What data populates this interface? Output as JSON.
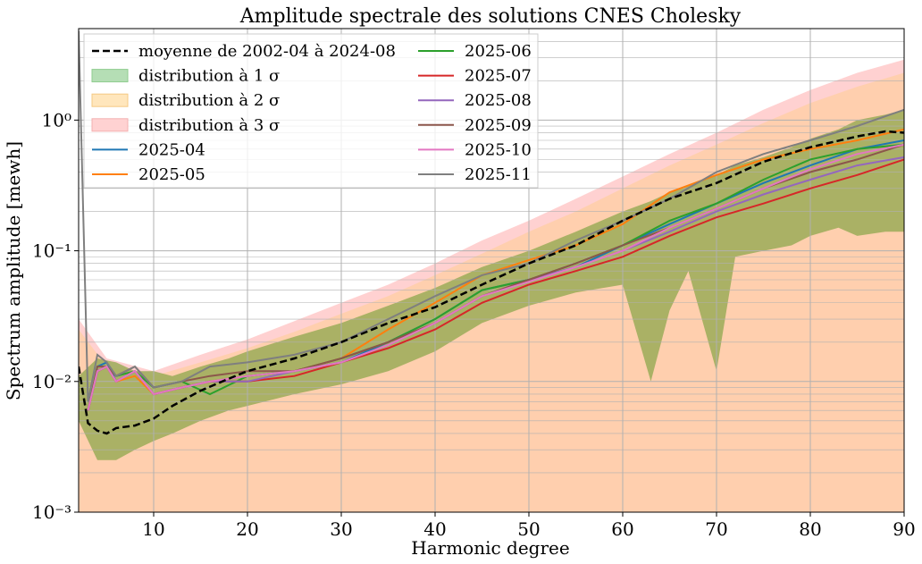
{
  "chart_data": {
    "type": "line",
    "title": "Amplitude spectrale des solutions CNES Cholesky",
    "xlabel": "Harmonic degree",
    "ylabel": "Spectrum amplitude [mewh]",
    "xlim": [
      2,
      90
    ],
    "ylim_log10": [
      -3,
      0.7
    ],
    "x_ticks": [
      {
        "value": 10,
        "label": "10"
      },
      {
        "value": 20,
        "label": "20"
      },
      {
        "value": 30,
        "label": "30"
      },
      {
        "value": 40,
        "label": "40"
      },
      {
        "value": 50,
        "label": "50"
      },
      {
        "value": 60,
        "label": "60"
      },
      {
        "value": 70,
        "label": "70"
      },
      {
        "value": 80,
        "label": "80"
      },
      {
        "value": 90,
        "label": "90"
      }
    ],
    "y_ticks": [
      {
        "exp": -3,
        "label": "10⁻³"
      },
      {
        "exp": -2,
        "label": "10⁻²"
      },
      {
        "exp": -1,
        "label": "10⁻¹"
      },
      {
        "exp": 0,
        "label": "10⁰"
      }
    ],
    "grid": true,
    "legend_position": "top-left",
    "mean_series": {
      "name": "moyenne de 2002-04 à 2024-08",
      "color": "#000000",
      "style": "dashed",
      "x": [
        2,
        3,
        4,
        5,
        6,
        8,
        10,
        12,
        15,
        18,
        20,
        25,
        30,
        35,
        40,
        45,
        50,
        55,
        60,
        65,
        70,
        75,
        80,
        85,
        88,
        90
      ],
      "y": [
        0.013,
        0.0048,
        0.0042,
        0.004,
        0.0044,
        0.0046,
        0.0052,
        0.0065,
        0.0085,
        0.0105,
        0.012,
        0.015,
        0.02,
        0.028,
        0.037,
        0.055,
        0.08,
        0.11,
        0.17,
        0.25,
        0.33,
        0.48,
        0.62,
        0.75,
        0.82,
        0.8
      ]
    },
    "bands": [
      {
        "name": "distribution à 3 σ",
        "color": "#ffc9c9",
        "x": [
          2,
          5,
          10,
          15,
          20,
          25,
          30,
          35,
          40,
          45,
          50,
          55,
          60,
          65,
          70,
          75,
          80,
          85,
          90
        ],
        "low": [
          0.001,
          0.001,
          0.001,
          0.001,
          0.001,
          0.001,
          0.001,
          0.001,
          0.001,
          0.001,
          0.001,
          0.001,
          0.001,
          0.001,
          0.001,
          0.001,
          0.001,
          0.001,
          0.001
        ],
        "high": [
          0.03,
          0.015,
          0.012,
          0.016,
          0.021,
          0.029,
          0.04,
          0.055,
          0.08,
          0.12,
          0.17,
          0.25,
          0.37,
          0.55,
          0.8,
          1.2,
          1.7,
          2.3,
          2.9
        ]
      },
      {
        "name": "distribution à 2 σ",
        "color": "#ffcfa8",
        "x": [
          2,
          5,
          10,
          15,
          20,
          25,
          30,
          35,
          40,
          45,
          50,
          55,
          60,
          65,
          70,
          75,
          80,
          85,
          90
        ],
        "low": [
          0.001,
          0.001,
          0.001,
          0.001,
          0.001,
          0.001,
          0.001,
          0.001,
          0.001,
          0.001,
          0.001,
          0.001,
          0.001,
          0.001,
          0.001,
          0.001,
          0.001,
          0.001,
          0.001
        ],
        "high": [
          0.025,
          0.013,
          0.011,
          0.014,
          0.018,
          0.024,
          0.033,
          0.045,
          0.065,
          0.095,
          0.14,
          0.2,
          0.3,
          0.45,
          0.65,
          0.95,
          1.35,
          1.8,
          2.3
        ]
      },
      {
        "name": "distribution à 1 σ",
        "color": "#9bab58",
        "x": [
          2,
          4,
          6,
          8,
          10,
          12,
          15,
          18,
          20,
          25,
          30,
          35,
          40,
          45,
          50,
          55,
          60,
          63,
          65,
          67,
          70,
          72,
          75,
          78,
          80,
          83,
          85,
          88,
          90
        ],
        "low": [
          0.005,
          0.0025,
          0.0025,
          0.003,
          0.0035,
          0.004,
          0.005,
          0.006,
          0.0065,
          0.008,
          0.0095,
          0.012,
          0.017,
          0.028,
          0.038,
          0.048,
          0.055,
          0.01,
          0.035,
          0.07,
          0.012,
          0.09,
          0.1,
          0.11,
          0.13,
          0.15,
          0.13,
          0.14,
          0.14
        ],
        "high": [
          0.011,
          0.015,
          0.014,
          0.012,
          0.012,
          0.011,
          0.013,
          0.015,
          0.017,
          0.022,
          0.028,
          0.038,
          0.052,
          0.075,
          0.1,
          0.14,
          0.2,
          0.24,
          0.28,
          0.32,
          0.38,
          0.45,
          0.52,
          0.62,
          0.72,
          0.85,
          1.0,
          1.1,
          1.2
        ]
      }
    ],
    "series": [
      {
        "name": "2025-04",
        "color": "#1f77b4",
        "x": [
          3,
          4,
          5,
          6,
          8,
          10,
          13,
          16,
          20,
          25,
          30,
          35,
          40,
          45,
          50,
          55,
          60,
          65,
          70,
          75,
          80,
          85,
          90
        ],
        "y": [
          0.006,
          0.013,
          0.014,
          0.01,
          0.012,
          0.008,
          0.009,
          0.01,
          0.011,
          0.012,
          0.014,
          0.02,
          0.03,
          0.05,
          0.06,
          0.075,
          0.11,
          0.16,
          0.23,
          0.33,
          0.45,
          0.6,
          0.7
        ]
      },
      {
        "name": "2025-05",
        "color": "#ff7f0e",
        "x": [
          3,
          4,
          5,
          6,
          8,
          10,
          13,
          16,
          20,
          25,
          30,
          35,
          40,
          45,
          50,
          55,
          60,
          65,
          70,
          75,
          80,
          85,
          90
        ],
        "y": [
          0.006,
          0.012,
          0.013,
          0.01,
          0.011,
          0.008,
          0.009,
          0.01,
          0.011,
          0.012,
          0.015,
          0.025,
          0.04,
          0.065,
          0.085,
          0.11,
          0.16,
          0.28,
          0.38,
          0.5,
          0.6,
          0.7,
          0.85
        ]
      },
      {
        "name": "2025-06",
        "color": "#2ca02c",
        "x": [
          3,
          4,
          5,
          6,
          8,
          10,
          13,
          16,
          20,
          25,
          30,
          35,
          40,
          45,
          50,
          55,
          60,
          65,
          70,
          75,
          80,
          85,
          90
        ],
        "y": [
          0.006,
          0.012,
          0.013,
          0.011,
          0.012,
          0.009,
          0.01,
          0.008,
          0.011,
          0.012,
          0.015,
          0.02,
          0.03,
          0.05,
          0.06,
          0.08,
          0.11,
          0.17,
          0.23,
          0.35,
          0.5,
          0.6,
          0.65
        ]
      },
      {
        "name": "2025-07",
        "color": "#d62728",
        "x": [
          3,
          4,
          5,
          6,
          8,
          10,
          13,
          16,
          20,
          25,
          30,
          35,
          40,
          45,
          50,
          55,
          60,
          65,
          70,
          75,
          80,
          85,
          90
        ],
        "y": [
          0.006,
          0.012,
          0.013,
          0.01,
          0.012,
          0.008,
          0.009,
          0.01,
          0.01,
          0.011,
          0.014,
          0.018,
          0.025,
          0.04,
          0.055,
          0.07,
          0.09,
          0.13,
          0.18,
          0.23,
          0.3,
          0.38,
          0.5
        ]
      },
      {
        "name": "2025-08",
        "color": "#9467bd",
        "x": [
          3,
          4,
          5,
          6,
          8,
          10,
          13,
          16,
          20,
          25,
          30,
          35,
          40,
          45,
          50,
          55,
          60,
          65,
          70,
          75,
          80,
          85,
          90
        ],
        "y": [
          0.006,
          0.012,
          0.013,
          0.01,
          0.012,
          0.008,
          0.009,
          0.01,
          0.01,
          0.012,
          0.014,
          0.019,
          0.028,
          0.045,
          0.06,
          0.075,
          0.1,
          0.14,
          0.2,
          0.27,
          0.35,
          0.45,
          0.52
        ]
      },
      {
        "name": "2025-09",
        "color": "#8c564b",
        "x": [
          3,
          4,
          5,
          6,
          8,
          10,
          13,
          16,
          20,
          25,
          30,
          35,
          40,
          45,
          50,
          55,
          60,
          65,
          70,
          75,
          80,
          85,
          90
        ],
        "y": [
          0.006,
          0.013,
          0.013,
          0.011,
          0.013,
          0.009,
          0.01,
          0.011,
          0.012,
          0.012,
          0.015,
          0.02,
          0.028,
          0.045,
          0.06,
          0.08,
          0.11,
          0.15,
          0.21,
          0.3,
          0.4,
          0.5,
          0.65
        ]
      },
      {
        "name": "2025-10",
        "color": "#e377c2",
        "x": [
          3,
          4,
          5,
          6,
          8,
          10,
          13,
          16,
          20,
          25,
          30,
          35,
          40,
          45,
          50,
          55,
          60,
          65,
          70,
          75,
          80,
          85,
          90
        ],
        "y": [
          0.006,
          0.012,
          0.013,
          0.01,
          0.012,
          0.008,
          0.009,
          0.01,
          0.011,
          0.012,
          0.014,
          0.019,
          0.028,
          0.045,
          0.058,
          0.075,
          0.1,
          0.15,
          0.21,
          0.3,
          0.42,
          0.55,
          0.65
        ]
      },
      {
        "name": "2025-11",
        "color": "#7f7f7f",
        "x": [
          2,
          3,
          4,
          5,
          6,
          8,
          10,
          13,
          16,
          20,
          25,
          30,
          35,
          40,
          45,
          50,
          55,
          60,
          65,
          70,
          75,
          80,
          85,
          90
        ],
        "y": [
          4.8,
          0.007,
          0.016,
          0.014,
          0.011,
          0.013,
          0.009,
          0.01,
          0.013,
          0.014,
          0.016,
          0.02,
          0.03,
          0.045,
          0.065,
          0.08,
          0.12,
          0.17,
          0.25,
          0.4,
          0.55,
          0.7,
          0.9,
          1.2
        ]
      }
    ]
  }
}
